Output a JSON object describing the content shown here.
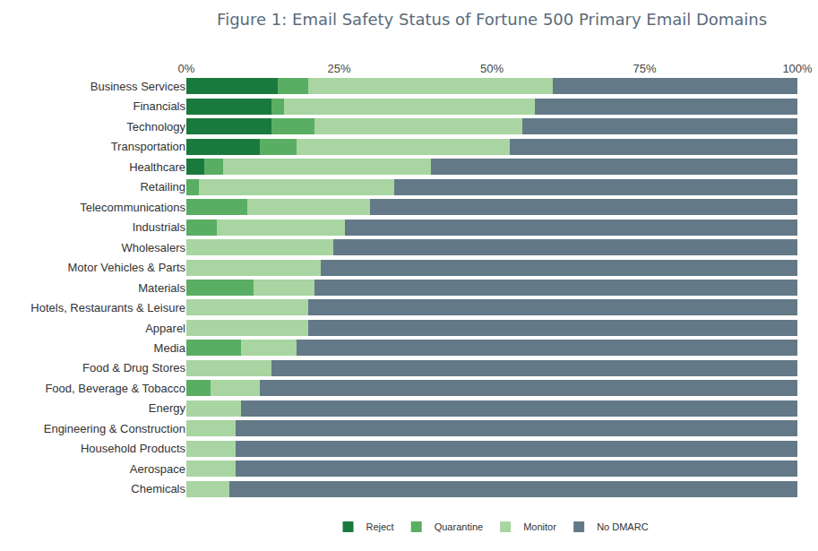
{
  "chart_data": {
    "type": "bar",
    "title": "Figure 1: Email Safety Status of Fortune 500 Primary Email Domains",
    "orientation": "horizontal",
    "stacked": true,
    "grid": false,
    "legend": "bottom",
    "categories": [
      "Business Services",
      "Financials",
      "Technology",
      "Transportation",
      "Healthcare",
      "Retailing",
      "Telecommunications",
      "Industrials",
      "Wholesalers",
      "Motor Vehicles & Parts",
      "Materials",
      "Hotels, Restaurants & Leisure",
      "Apparel",
      "Media",
      "Food & Drug Stores",
      "Food, Beverage & Tobacco",
      "Energy",
      "Engineering & Construction",
      "Household Products",
      "Aerospace",
      "Chemicals"
    ],
    "xlim": [
      0,
      100
    ],
    "xticks": [
      {
        "value": 0,
        "label": "0%"
      },
      {
        "value": 25,
        "label": "25%"
      },
      {
        "value": 50,
        "label": "50%"
      },
      {
        "value": 75,
        "label": "75%"
      },
      {
        "value": 100,
        "label": "100%"
      }
    ],
    "series": [
      {
        "name": "Reject",
        "color": "#1a7a3e",
        "values": [
          15,
          14,
          14,
          12,
          3,
          0,
          0,
          0,
          0,
          0,
          0,
          0,
          0,
          0,
          0,
          0,
          0,
          0,
          0,
          0,
          0
        ]
      },
      {
        "name": "Quarantine",
        "color": "#5aae63",
        "values": [
          5,
          2,
          7,
          6,
          3,
          2,
          10,
          5,
          0,
          0,
          11,
          0,
          0,
          9,
          0,
          4,
          0,
          0,
          0,
          0,
          0
        ]
      },
      {
        "name": "Monitor",
        "color": "#a8d5a2",
        "values": [
          40,
          41,
          34,
          35,
          34,
          32,
          20,
          21,
          24,
          22,
          10,
          20,
          20,
          9,
          14,
          8,
          9,
          8,
          8,
          8,
          7
        ]
      },
      {
        "name": "No DMARC",
        "color": "#637987",
        "values": [
          40,
          43,
          45,
          47,
          60,
          66,
          70,
          74,
          76,
          78,
          79,
          80,
          80,
          82,
          86,
          88,
          91,
          92,
          92,
          92,
          93
        ]
      }
    ]
  }
}
